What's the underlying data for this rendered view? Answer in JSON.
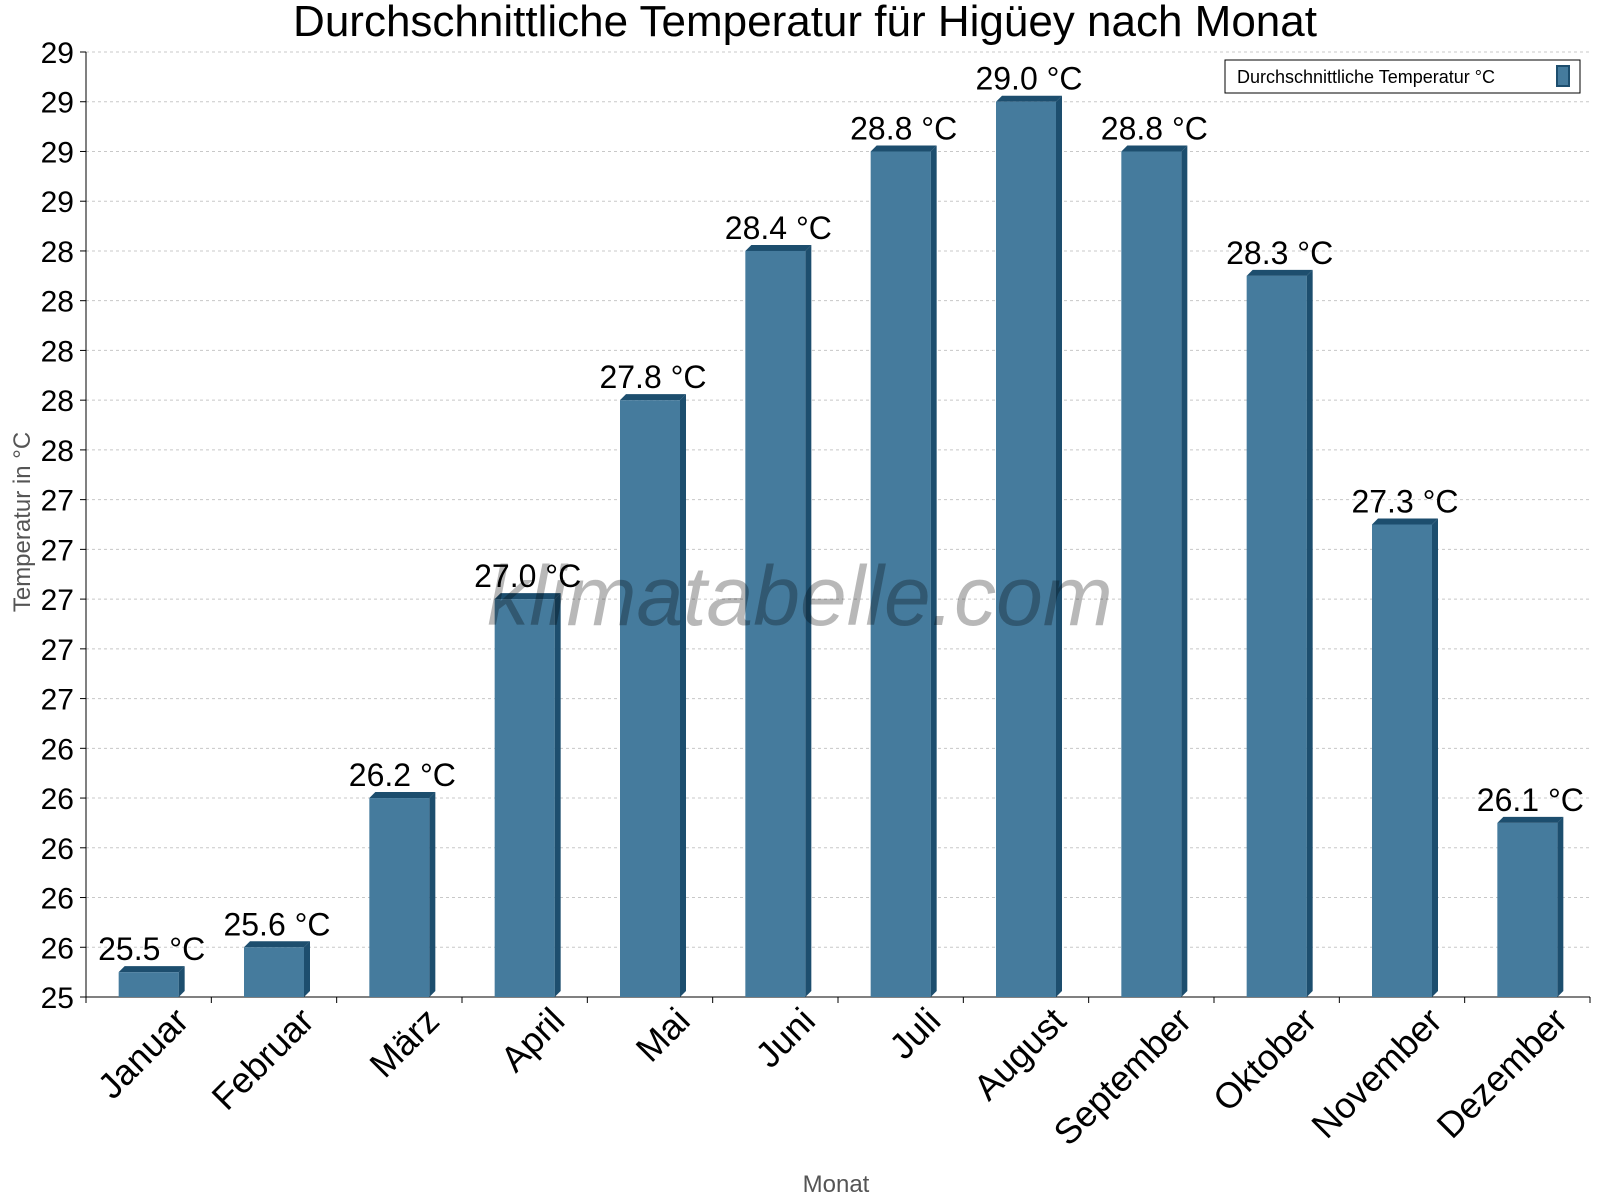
{
  "chart_data": {
    "type": "bar",
    "title": "Durchschnittliche Temperatur für Higüey nach Monat",
    "xlabel": "Monat",
    "ylabel": "Temperatur in °C",
    "categories": [
      "Januar",
      "Februar",
      "März",
      "April",
      "Mai",
      "Juni",
      "Juli",
      "August",
      "September",
      "Oktober",
      "November",
      "Dezember"
    ],
    "series": [
      {
        "name": "Durchschnittliche Temperatur °C",
        "values": [
          25.5,
          25.6,
          26.2,
          27.0,
          27.8,
          28.4,
          28.8,
          29.0,
          28.8,
          28.3,
          27.3,
          26.1
        ],
        "data_labels": [
          "25.5 °C",
          "25.6 °C",
          "26.2 °C",
          "27.0 °C",
          "27.8 °C",
          "28.4 °C",
          "28.8 °C",
          "29.0 °C",
          "28.8 °C",
          "28.3 °C",
          "27.3 °C",
          "26.1 °C"
        ]
      }
    ],
    "ylim": [
      25.4,
      29.2
    ],
    "y_ticks": [
      25.4,
      25.6,
      25.8,
      26.0,
      26.2,
      26.4,
      26.6,
      26.8,
      27.0,
      27.2,
      27.4,
      27.6,
      27.8,
      28.0,
      28.2,
      28.4,
      28.6,
      28.8,
      29.0,
      29.2
    ],
    "y_tick_labels": [
      "25",
      "26",
      "26",
      "26",
      "26",
      "26",
      "27",
      "27",
      "27",
      "27",
      "27",
      "28",
      "28",
      "28",
      "28",
      "28",
      "29",
      "29",
      "29",
      "29"
    ],
    "grid": true,
    "legend_position": "top-right",
    "bar_color": "#457b9d",
    "bar_side_color": "#1d4e6e",
    "watermark": "klimatabelle.com"
  }
}
